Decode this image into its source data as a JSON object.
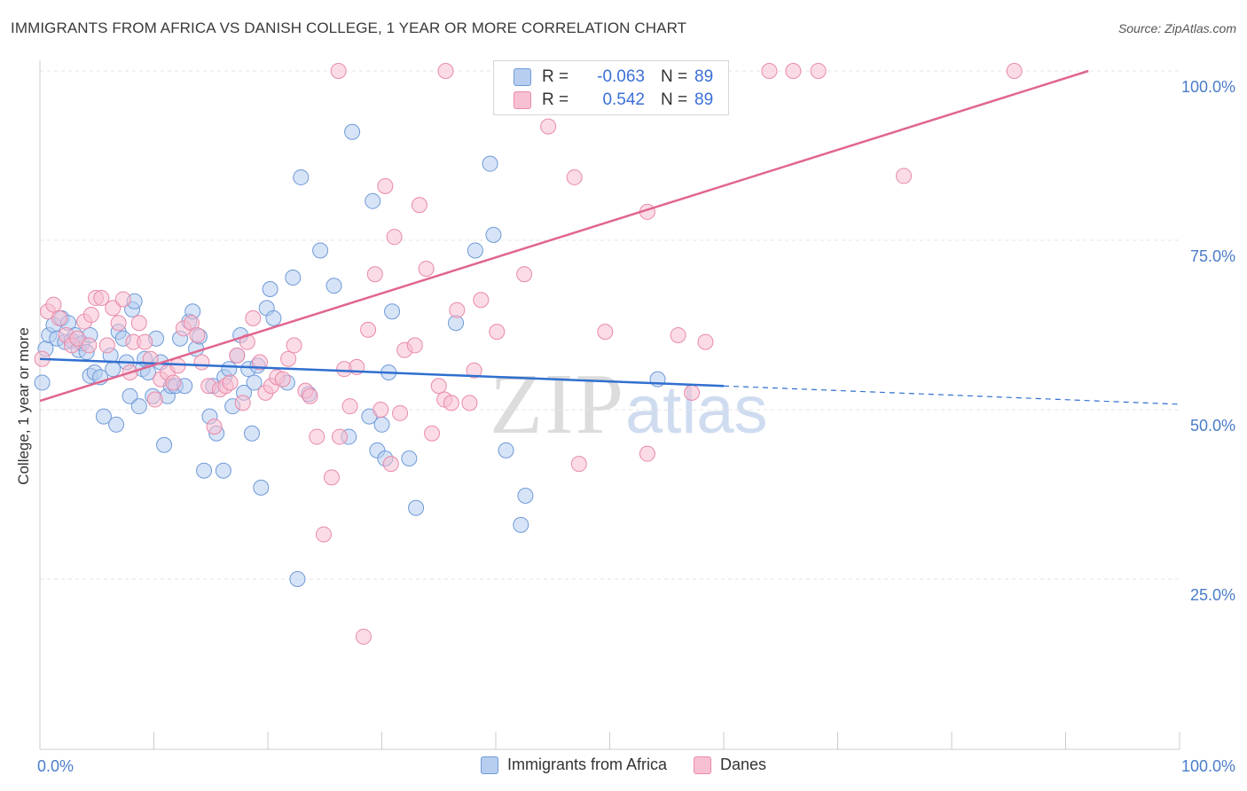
{
  "title": "IMMIGRANTS FROM AFRICA VS DANISH COLLEGE, 1 YEAR OR MORE CORRELATION CHART",
  "source": "Source: ZipAtlas.com",
  "watermark": {
    "zip": "ZIP",
    "atlas": "atlas"
  },
  "legend": {
    "rows": [
      {
        "r_label": "R =",
        "r_value": "-0.063",
        "n_label": "N =",
        "n_value": "89"
      },
      {
        "r_label": "R =",
        "r_value": "0.542",
        "n_label": "N =",
        "n_value": "89"
      }
    ]
  },
  "bottom_legend": [
    "Immigrants from Africa",
    "Danes"
  ],
  "colors": {
    "blue_fill": "#b7cef0",
    "blue_stroke": "#6f9ad8",
    "blue_line": "#2f6fd0",
    "pink_fill": "#f7c0d2",
    "pink_stroke": "#e98aa9",
    "pink_line": "#e06690",
    "grid": "#e6e6e6",
    "axis_text": "#4a7cc9"
  },
  "chart_data": {
    "type": "scatter",
    "title": "IMMIGRANTS FROM AFRICA VS DANISH COLLEGE, 1 YEAR OR MORE CORRELATION CHART",
    "xlabel": "",
    "ylabel": "College, 1 year or more",
    "xlim": [
      0,
      100
    ],
    "ylim": [
      0,
      102
    ],
    "x_ticks": [
      "0.0%",
      "100.0%"
    ],
    "y_ticks": [
      {
        "value": 25,
        "label": "25.0%"
      },
      {
        "value": 50,
        "label": "50.0%"
      },
      {
        "value": 75,
        "label": "75.0%"
      },
      {
        "value": 100,
        "label": "100.0%"
      }
    ],
    "grid": true,
    "series": [
      {
        "name": "Immigrants from Africa",
        "color": "blue",
        "r": -0.063,
        "n": 89,
        "trend": {
          "x0": 0,
          "y0": 57.5,
          "x1": 60,
          "y1": 53.5,
          "dash_to": 100,
          "dash_y": 50.8
        },
        "points": [
          [
            0.2,
            54.0
          ],
          [
            0.5,
            59.0
          ],
          [
            0.8,
            61.0
          ],
          [
            1.2,
            62.5
          ],
          [
            1.5,
            60.5
          ],
          [
            1.9,
            63.5
          ],
          [
            2.2,
            60.0
          ],
          [
            2.5,
            62.8
          ],
          [
            2.8,
            60.2
          ],
          [
            3.1,
            61.0
          ],
          [
            3.4,
            58.8
          ],
          [
            3.7,
            59.8
          ],
          [
            4.1,
            58.5
          ],
          [
            4.4,
            61.0
          ],
          [
            4.4,
            55.0
          ],
          [
            4.8,
            55.5
          ],
          [
            5.3,
            54.8
          ],
          [
            5.6,
            49.0
          ],
          [
            6.2,
            58.0
          ],
          [
            6.4,
            56.0
          ],
          [
            6.7,
            47.8
          ],
          [
            6.9,
            61.5
          ],
          [
            7.3,
            60.5
          ],
          [
            7.6,
            57.0
          ],
          [
            7.9,
            52.0
          ],
          [
            8.1,
            64.8
          ],
          [
            8.3,
            66.0
          ],
          [
            8.7,
            50.5
          ],
          [
            9.0,
            56.0
          ],
          [
            9.2,
            57.5
          ],
          [
            9.5,
            55.5
          ],
          [
            9.9,
            52.0
          ],
          [
            10.2,
            60.5
          ],
          [
            10.6,
            57.0
          ],
          [
            10.9,
            44.8
          ],
          [
            11.2,
            52.0
          ],
          [
            11.5,
            53.5
          ],
          [
            11.9,
            53.5
          ],
          [
            12.3,
            60.5
          ],
          [
            12.7,
            53.5
          ],
          [
            13.1,
            63.0
          ],
          [
            13.4,
            64.5
          ],
          [
            13.7,
            59.0
          ],
          [
            14.0,
            60.8
          ],
          [
            14.4,
            41.0
          ],
          [
            14.9,
            49.0
          ],
          [
            15.2,
            53.5
          ],
          [
            15.5,
            46.5
          ],
          [
            16.1,
            41.0
          ],
          [
            16.2,
            54.8
          ],
          [
            16.6,
            56.0
          ],
          [
            16.9,
            50.5
          ],
          [
            17.3,
            58.0
          ],
          [
            17.6,
            61.0
          ],
          [
            17.9,
            52.5
          ],
          [
            18.3,
            56.0
          ],
          [
            18.6,
            46.5
          ],
          [
            18.8,
            54.0
          ],
          [
            19.1,
            56.5
          ],
          [
            19.4,
            38.5
          ],
          [
            19.9,
            65.0
          ],
          [
            20.2,
            67.8
          ],
          [
            20.5,
            63.5
          ],
          [
            21.7,
            54.0
          ],
          [
            22.2,
            69.5
          ],
          [
            22.6,
            25.0
          ],
          [
            22.9,
            84.3
          ],
          [
            23.6,
            52.3
          ],
          [
            24.6,
            73.5
          ],
          [
            25.8,
            68.3
          ],
          [
            27.1,
            46.0
          ],
          [
            27.4,
            91.0
          ],
          [
            28.9,
            49.0
          ],
          [
            29.2,
            80.8
          ],
          [
            29.6,
            44.0
          ],
          [
            30.0,
            47.8
          ],
          [
            30.3,
            42.8
          ],
          [
            30.6,
            55.5
          ],
          [
            30.9,
            64.5
          ],
          [
            32.4,
            42.8
          ],
          [
            33.0,
            35.5
          ],
          [
            36.5,
            62.8
          ],
          [
            38.2,
            73.5
          ],
          [
            39.5,
            86.3
          ],
          [
            39.8,
            75.8
          ],
          [
            40.9,
            44.0
          ],
          [
            42.2,
            33.0
          ],
          [
            42.6,
            37.3
          ],
          [
            54.2,
            54.5
          ]
        ]
      },
      {
        "name": "Danes",
        "color": "pink",
        "r": 0.542,
        "n": 89,
        "trend": {
          "x0": 0,
          "y0": 51.3,
          "x1": 92,
          "y1": 100
        },
        "points": [
          [
            0.2,
            57.5
          ],
          [
            0.7,
            64.5
          ],
          [
            1.2,
            65.5
          ],
          [
            1.7,
            63.5
          ],
          [
            2.3,
            61.0
          ],
          [
            2.8,
            59.5
          ],
          [
            3.3,
            60.5
          ],
          [
            3.9,
            63.0
          ],
          [
            4.3,
            59.5
          ],
          [
            4.5,
            64.0
          ],
          [
            4.9,
            66.5
          ],
          [
            5.4,
            66.5
          ],
          [
            5.9,
            59.5
          ],
          [
            6.4,
            65.0
          ],
          [
            6.9,
            62.8
          ],
          [
            7.3,
            66.3
          ],
          [
            7.9,
            55.5
          ],
          [
            8.2,
            60.0
          ],
          [
            8.7,
            62.8
          ],
          [
            9.2,
            60.0
          ],
          [
            9.7,
            57.5
          ],
          [
            10.1,
            51.5
          ],
          [
            10.6,
            54.5
          ],
          [
            11.2,
            55.5
          ],
          [
            11.7,
            54.0
          ],
          [
            12.1,
            56.5
          ],
          [
            12.6,
            62.0
          ],
          [
            13.3,
            62.8
          ],
          [
            13.8,
            61.0
          ],
          [
            14.2,
            57.0
          ],
          [
            14.8,
            53.5
          ],
          [
            15.3,
            47.5
          ],
          [
            15.8,
            53.0
          ],
          [
            16.3,
            53.5
          ],
          [
            16.7,
            54.0
          ],
          [
            17.3,
            58.0
          ],
          [
            17.8,
            51.0
          ],
          [
            18.2,
            60.0
          ],
          [
            18.7,
            63.5
          ],
          [
            19.3,
            57.0
          ],
          [
            19.8,
            52.5
          ],
          [
            20.3,
            53.5
          ],
          [
            20.8,
            54.8
          ],
          [
            21.3,
            54.5
          ],
          [
            21.8,
            57.5
          ],
          [
            22.3,
            59.5
          ],
          [
            23.3,
            52.8
          ],
          [
            23.7,
            52.0
          ],
          [
            24.3,
            46.0
          ],
          [
            24.9,
            31.6
          ],
          [
            25.6,
            40.0
          ],
          [
            26.3,
            46.0
          ],
          [
            26.7,
            56.0
          ],
          [
            27.2,
            50.5
          ],
          [
            27.8,
            56.3
          ],
          [
            28.4,
            16.5
          ],
          [
            28.8,
            61.8
          ],
          [
            29.4,
            70.0
          ],
          [
            29.9,
            50.0
          ],
          [
            30.3,
            83.0
          ],
          [
            30.8,
            42.0
          ],
          [
            31.1,
            75.5
          ],
          [
            31.6,
            49.5
          ],
          [
            32.0,
            58.8
          ],
          [
            32.9,
            59.5
          ],
          [
            33.3,
            80.2
          ],
          [
            33.9,
            70.8
          ],
          [
            34.4,
            46.5
          ],
          [
            35.0,
            53.5
          ],
          [
            35.5,
            51.5
          ],
          [
            36.1,
            51.0
          ],
          [
            36.6,
            64.7
          ],
          [
            37.7,
            51.0
          ],
          [
            38.1,
            55.8
          ],
          [
            38.7,
            66.2
          ],
          [
            40.1,
            61.5
          ],
          [
            42.5,
            70.0
          ],
          [
            43.6,
            96.0
          ],
          [
            44.6,
            91.8
          ],
          [
            45.6,
            95.5
          ],
          [
            46.9,
            84.3
          ],
          [
            47.3,
            42.0
          ],
          [
            49.6,
            61.5
          ],
          [
            53.3,
            43.5
          ],
          [
            53.3,
            79.2
          ],
          [
            56.0,
            61.0
          ],
          [
            57.2,
            52.5
          ],
          [
            58.4,
            60.0
          ],
          [
            75.8,
            84.5
          ]
        ]
      }
    ],
    "top_clipped_points": [
      {
        "series": "Danes",
        "xs": [
          26.2,
          35.6,
          42.4,
          64.0,
          66.1,
          68.3,
          85.5
        ]
      }
    ]
  }
}
